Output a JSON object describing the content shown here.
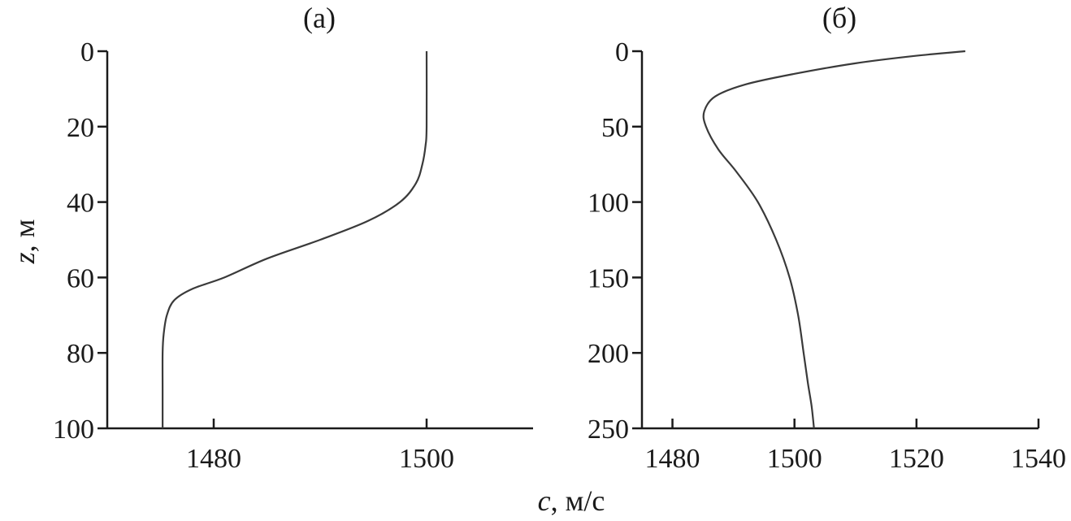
{
  "chart_data": [
    {
      "type": "line",
      "panel_label": "(а)",
      "xlabel": "",
      "ylabel": "z, м",
      "xlim": [
        1470,
        1510
      ],
      "ylim": [
        0,
        100
      ],
      "y_inverted": true,
      "x_ticks": [
        1480,
        1500
      ],
      "y_ticks": [
        0,
        20,
        40,
        60,
        80,
        100
      ],
      "series": [
        {
          "x": [
            1500.0,
            1500.0,
            1499.9,
            1499.6,
            1499.0,
            1497.5,
            1494.5,
            1490.0,
            1485.0,
            1481.0,
            1478.0,
            1476.3,
            1475.6,
            1475.3,
            1475.2,
            1475.2,
            1475.2
          ],
          "y": [
            0,
            20,
            25,
            30,
            35,
            40,
            45,
            50,
            55,
            60,
            63,
            66,
            70,
            75,
            80,
            90,
            100
          ]
        }
      ]
    },
    {
      "type": "line",
      "panel_label": "(б)",
      "xlabel": "",
      "ylabel": "",
      "xlim": [
        1475,
        1540
      ],
      "ylim": [
        0,
        250
      ],
      "y_inverted": true,
      "x_ticks": [
        1480,
        1500,
        1520,
        1540
      ],
      "y_ticks": [
        0,
        50,
        100,
        150,
        200,
        250
      ],
      "series": [
        {
          "x": [
            1528.0,
            1520.0,
            1510.0,
            1500.0,
            1492.0,
            1487.0,
            1485.2,
            1485.5,
            1487.5,
            1490.5,
            1494.0,
            1497.0,
            1499.2,
            1500.6,
            1501.5,
            1502.2,
            1502.8,
            1503.2
          ],
          "y": [
            0,
            3,
            8,
            15,
            22,
            30,
            40,
            50,
            65,
            80,
            100,
            125,
            150,
            175,
            200,
            220,
            235,
            250
          ]
        }
      ]
    }
  ],
  "shared_xlabel": "c, м/с"
}
